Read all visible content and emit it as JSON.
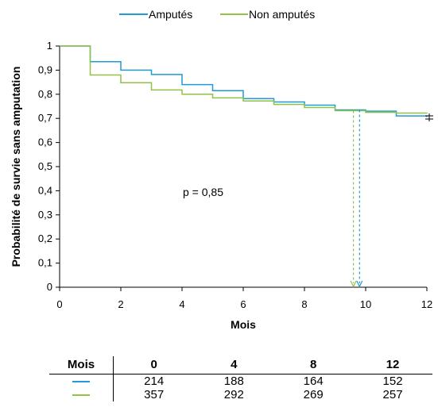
{
  "chart_data": {
    "type": "line",
    "legend": [
      {
        "name": "Amputés",
        "color": "#1f9bd7"
      },
      {
        "name": "Non amputés",
        "color": "#92c144"
      }
    ],
    "xlabel": "Mois",
    "ylabel": "Probabilité de survie sans amputation",
    "xlim": [
      0,
      12
    ],
    "ylim": [
      0,
      1
    ],
    "xticks": [
      0,
      2,
      4,
      6,
      8,
      10,
      12
    ],
    "xtick_labels": [
      "0",
      "2",
      "4",
      "6",
      "8",
      "10",
      "12"
    ],
    "yticks": [
      0,
      0.1,
      0.2,
      0.3,
      0.4,
      0.5,
      0.6,
      0.7,
      0.8,
      0.9,
      1
    ],
    "ytick_labels": [
      "0",
      "0,1",
      "0,2",
      "0,3",
      "0,4",
      "0,5",
      "0,6",
      "0,7",
      "0,8",
      "0,9",
      "1"
    ],
    "grid": false,
    "legend_position": "top",
    "annotation": "p = 0,85",
    "series": [
      {
        "name": "Amputés",
        "color": "#1f9bd7",
        "step": true,
        "x": [
          0,
          1,
          2,
          3,
          4,
          5,
          6,
          7,
          8,
          9,
          10,
          11,
          12
        ],
        "y": [
          1.0,
          0.935,
          0.9,
          0.882,
          0.84,
          0.815,
          0.782,
          0.768,
          0.755,
          0.735,
          0.73,
          0.71,
          0.705
        ],
        "median": 9.8
      },
      {
        "name": "Non amputés",
        "color": "#92c144",
        "step": true,
        "x": [
          0,
          1,
          2,
          3,
          4,
          5,
          6,
          7,
          8,
          9,
          10,
          11,
          12
        ],
        "y": [
          1.0,
          0.88,
          0.848,
          0.818,
          0.8,
          0.785,
          0.772,
          0.758,
          0.745,
          0.732,
          0.725,
          0.722,
          0.72
        ],
        "median": 9.6
      }
    ]
  },
  "risk_table": {
    "header_label": "Mois",
    "columns": [
      "0",
      "4",
      "8",
      "12"
    ],
    "rows": [
      {
        "color": "#1f9bd7",
        "values": [
          "214",
          "188",
          "164",
          "152"
        ]
      },
      {
        "color": "#92c144",
        "values": [
          "357",
          "292",
          "269",
          "257"
        ]
      }
    ]
  }
}
